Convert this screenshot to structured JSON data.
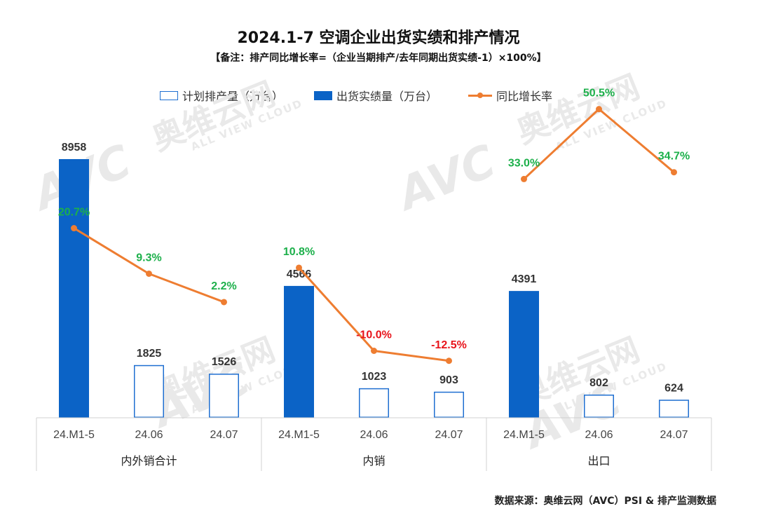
{
  "title": "2024.1-7 空调企业出货实绩和排产情况",
  "subtitle": "【备注：排产同比增长率=（企业当期排产/去年同期出货实绩-1）×100%】",
  "source": "数据来源：奥维云网（AVC）PSI & 排产监测数据",
  "watermark": {
    "brand": "AVC",
    "cn": "奥维云网",
    "en": "ALL VIEW CLOUD"
  },
  "legend": {
    "planned": "计划排产量（万台）",
    "shipped": "出货实绩量（万台）",
    "yoy": "同比增长率"
  },
  "colors": {
    "shipped": "#0B63C6",
    "planned_border": "#1F6FD1",
    "line": "#EE7D31",
    "positive": "#1DB04B",
    "negative": "#E8141B",
    "value_label": "#333333"
  },
  "chart_data": {
    "type": "bar",
    "title": "2024.1-7 空调企业出货实绩和排产情况",
    "groups": [
      {
        "name": "内外销合计",
        "categories": [
          "24.M1-5",
          "24.06",
          "24.07"
        ]
      },
      {
        "name": "内销",
        "categories": [
          "24.M1-5",
          "24.06",
          "24.07"
        ]
      },
      {
        "name": "出口",
        "categories": [
          "24.M1-5",
          "24.06",
          "24.07"
        ]
      }
    ],
    "bars": [
      {
        "group": 0,
        "category": "24.M1-5",
        "series": "shipped",
        "value": 8958,
        "label": "8958"
      },
      {
        "group": 0,
        "category": "24.06",
        "series": "planned",
        "value": 1825,
        "label": "1825"
      },
      {
        "group": 0,
        "category": "24.07",
        "series": "planned",
        "value": 1526,
        "label": "1526"
      },
      {
        "group": 1,
        "category": "24.M1-5",
        "series": "shipped",
        "value": 4566,
        "label": "4566"
      },
      {
        "group": 1,
        "category": "24.06",
        "series": "planned",
        "value": 1023,
        "label": "1023"
      },
      {
        "group": 1,
        "category": "24.07",
        "series": "planned",
        "value": 903,
        "label": "903"
      },
      {
        "group": 2,
        "category": "24.M1-5",
        "series": "shipped",
        "value": 4391,
        "label": "4391"
      },
      {
        "group": 2,
        "category": "24.06",
        "series": "planned",
        "value": 802,
        "label": "802"
      },
      {
        "group": 2,
        "category": "24.07",
        "series": "planned",
        "value": 624,
        "label": "624"
      }
    ],
    "yoy_lines": [
      {
        "group": 0,
        "values": [
          20.7,
          9.3,
          2.2
        ],
        "labels": [
          "20.7%",
          "9.3%",
          "2.2%"
        ]
      },
      {
        "group": 1,
        "values": [
          10.8,
          -10.0,
          -12.5
        ],
        "labels": [
          "10.8%",
          "-10.0%",
          "-12.5%"
        ]
      },
      {
        "group": 2,
        "values": [
          33.0,
          50.5,
          34.7
        ],
        "labels": [
          "33.0%",
          "50.5%",
          "34.7%"
        ]
      }
    ],
    "bar_ylim": [
      0,
      9000
    ],
    "yoy_ylim": [
      -40,
      110
    ]
  }
}
